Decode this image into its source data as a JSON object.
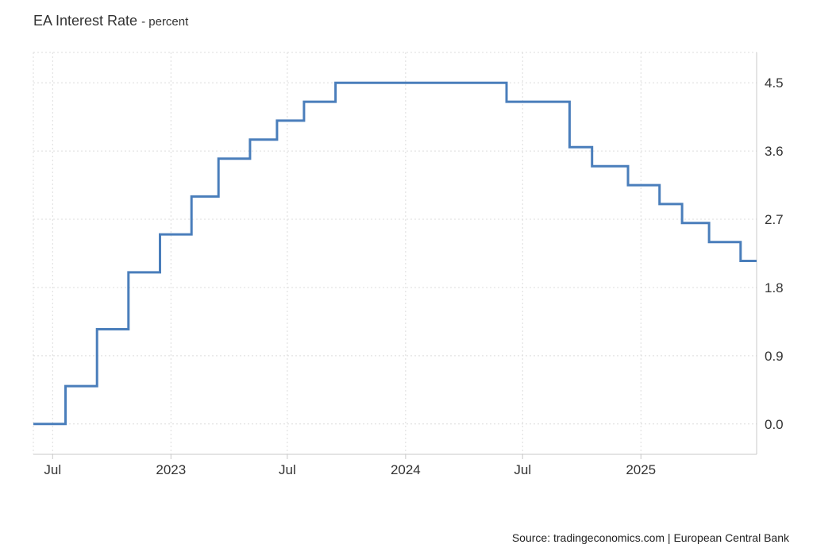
{
  "source": "Source: tradingeconomics.com | European Central Bank",
  "chart_data": {
    "type": "line",
    "step": true,
    "title": "EA Interest Rate",
    "unit": "- percent",
    "xlabel": "",
    "ylabel": "",
    "y_axis_side": "right",
    "grid": true,
    "ylim": [
      -0.4,
      4.9
    ],
    "xlim": [
      "2022-06-01",
      "2025-06-30"
    ],
    "y_ticks": [
      0.0,
      0.9,
      1.8,
      2.7,
      3.6,
      4.5
    ],
    "y_tick_labels": [
      "0.0",
      "0.9",
      "1.8",
      "2.7",
      "3.6",
      "4.5"
    ],
    "x_ticks": [
      "2022-07-01",
      "2023-01-01",
      "2023-07-01",
      "2024-01-01",
      "2024-07-01",
      "2025-01-01"
    ],
    "x_tick_labels": [
      "Jul",
      "2023",
      "Jul",
      "2024",
      "Jul",
      "2025"
    ],
    "series": [
      {
        "color": "#4a7ebb",
        "x": [
          "2022-06-01",
          "2022-07-21",
          "2022-09-08",
          "2022-10-27",
          "2022-12-15",
          "2023-02-02",
          "2023-03-16",
          "2023-05-04",
          "2023-06-15",
          "2023-07-27",
          "2023-09-14",
          "2024-06-06",
          "2024-09-12",
          "2024-10-17",
          "2024-12-12",
          "2025-01-30",
          "2025-03-06",
          "2025-04-17",
          "2025-06-05",
          "2025-06-30"
        ],
        "values": [
          0.0,
          0.5,
          1.25,
          2.0,
          2.5,
          3.0,
          3.5,
          3.75,
          4.0,
          4.25,
          4.5,
          4.25,
          3.65,
          3.4,
          3.15,
          2.9,
          2.65,
          2.4,
          2.15,
          2.15
        ]
      }
    ]
  }
}
